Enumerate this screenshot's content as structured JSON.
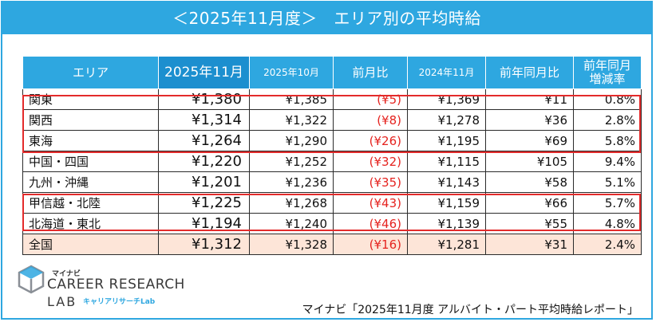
{
  "title": "＜2025年11月度＞　エリア別の平均時給",
  "headers": {
    "area": "エリア",
    "nov2025": "2025年11月",
    "oct2025": "2025年10月",
    "mom": "前月比",
    "nov2024": "2024年11月",
    "yoy": "前年同月比",
    "yoy_rate_line1": "前年同月",
    "yoy_rate_line2": "増減率"
  },
  "rows": [
    {
      "area": "関東",
      "nov2025": "¥1,380",
      "oct2025": "¥1,385",
      "mom": "(¥5)",
      "nov2024": "¥1,369",
      "yoy": "¥11",
      "yoy_rate": "0.8%"
    },
    {
      "area": "関西",
      "nov2025": "¥1,314",
      "oct2025": "¥1,322",
      "mom": "(¥8)",
      "nov2024": "¥1,278",
      "yoy": "¥36",
      "yoy_rate": "2.8%"
    },
    {
      "area": "東海",
      "nov2025": "¥1,264",
      "oct2025": "¥1,290",
      "mom": "(¥26)",
      "nov2024": "¥1,195",
      "yoy": "¥69",
      "yoy_rate": "5.8%"
    },
    {
      "area": "中国・四国",
      "nov2025": "¥1,220",
      "oct2025": "¥1,252",
      "mom": "(¥32)",
      "nov2024": "¥1,115",
      "yoy": "¥105",
      "yoy_rate": "9.4%"
    },
    {
      "area": "九州・沖縄",
      "nov2025": "¥1,201",
      "oct2025": "¥1,236",
      "mom": "(¥35)",
      "nov2024": "¥1,143",
      "yoy": "¥58",
      "yoy_rate": "5.1%"
    },
    {
      "area": "甲信越・北陸",
      "nov2025": "¥1,225",
      "oct2025": "¥1,268",
      "mom": "(¥43)",
      "nov2024": "¥1,159",
      "yoy": "¥66",
      "yoy_rate": "5.7%"
    },
    {
      "area": "北海道・東北",
      "nov2025": "¥1,194",
      "oct2025": "¥1,240",
      "mom": "(¥46)",
      "nov2024": "¥1,139",
      "yoy": "¥55",
      "yoy_rate": "4.8%"
    }
  ],
  "total": {
    "area": "全国",
    "nov2025": "¥1,312",
    "oct2025": "¥1,328",
    "mom": "(¥16)",
    "nov2024": "¥1,281",
    "yoy": "¥31",
    "yoy_rate": "2.4%"
  },
  "logo": {
    "brand": "マイナビ",
    "line1": "CAREER RESEARCH",
    "line2": "LAB",
    "sub": "キャリアリサーチLab"
  },
  "source": "マイナビ「2025年11月度 アルバイト・パート平均時給レポート」",
  "colors": {
    "accent": "#2ea7e0",
    "highlight": "#e32b2b",
    "negative": "#e5231f",
    "total_row": "#fde5d8"
  }
}
